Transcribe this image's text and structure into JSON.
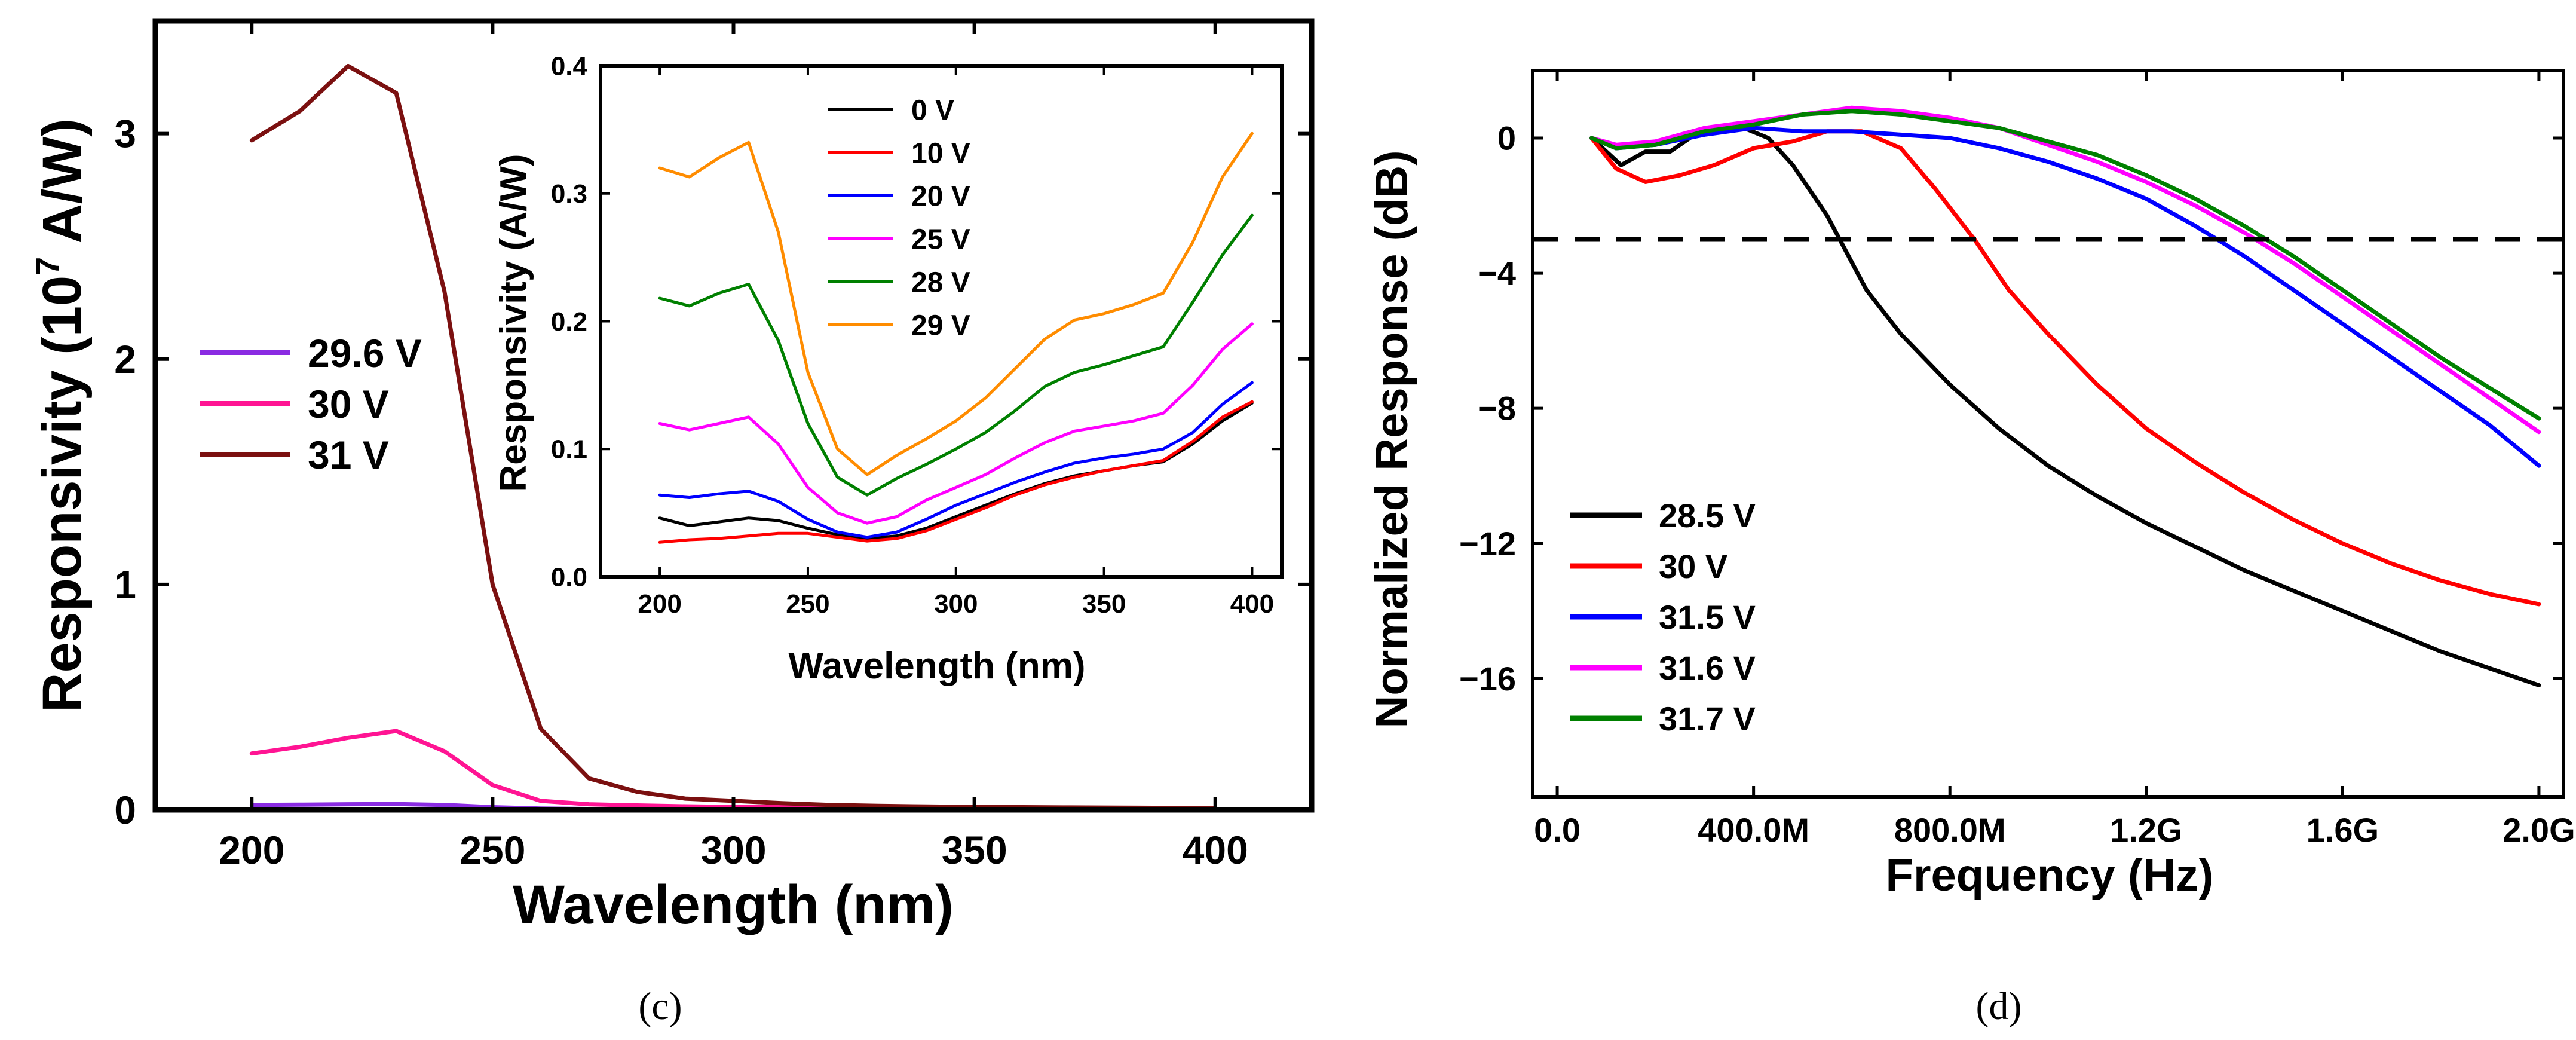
{
  "panels": {
    "c": "(c)",
    "d": "(d)"
  },
  "chart_data": [
    {
      "id": "c_main",
      "type": "line",
      "title": "",
      "xlabel": "Wavelength (nm)",
      "ylabel_main": "Responsivity (10",
      "ylabel_sup": "7",
      "ylabel_tail": " A/W)",
      "xlim": [
        180,
        420
      ],
      "ylim": [
        0,
        3.5
      ],
      "xticks": [
        200,
        250,
        300,
        350,
        400
      ],
      "xtick_labels": [
        "200",
        "250",
        "300",
        "350",
        "400"
      ],
      "yticks": [
        0,
        1,
        2,
        3
      ],
      "ytick_labels": [
        "0",
        "1",
        "2",
        "3"
      ],
      "x": [
        200,
        210,
        220,
        230,
        240,
        250,
        260,
        270,
        280,
        290,
        300,
        310,
        320,
        330,
        340,
        350,
        360,
        370,
        380,
        390,
        400
      ],
      "series": [
        {
          "name": "29.6 V",
          "color": "#8a2be2",
          "values": [
            0.022,
            0.023,
            0.025,
            0.026,
            0.022,
            0.012,
            0.006,
            0.004,
            0.003,
            0.003,
            0.002,
            0.002,
            0.002,
            0.002,
            0.002,
            0.002,
            0.002,
            0.002,
            0.002,
            0.002,
            0.002
          ]
        },
        {
          "name": "30 V",
          "color": "#ff1493",
          "values": [
            0.25,
            0.28,
            0.32,
            0.35,
            0.26,
            0.11,
            0.04,
            0.025,
            0.02,
            0.016,
            0.013,
            0.012,
            0.011,
            0.01,
            0.009,
            0.009,
            0.008,
            0.008,
            0.007,
            0.007,
            0.007
          ]
        },
        {
          "name": "31 V",
          "color": "#7b1010",
          "values": [
            2.97,
            3.1,
            3.3,
            3.18,
            2.3,
            1.0,
            0.36,
            0.14,
            0.08,
            0.05,
            0.04,
            0.03,
            0.022,
            0.018,
            0.015,
            0.013,
            0.012,
            0.011,
            0.01,
            0.009,
            0.008
          ]
        }
      ],
      "legend": "left"
    },
    {
      "id": "c_inset",
      "type": "line",
      "xlabel": "Wavelength (nm)",
      "ylabel": "Responsivity (A/W)",
      "xlim": [
        180,
        410
      ],
      "ylim": [
        0,
        0.4
      ],
      "xticks": [
        200,
        250,
        300,
        350,
        400
      ],
      "xtick_labels": [
        "200",
        "250",
        "300",
        "350",
        "400"
      ],
      "yticks": [
        0,
        0.1,
        0.2,
        0.3,
        0.4
      ],
      "ytick_labels": [
        "0.0",
        "0.1",
        "0.2",
        "0.3",
        "0.4"
      ],
      "x": [
        200,
        210,
        220,
        230,
        240,
        250,
        260,
        270,
        280,
        290,
        300,
        310,
        320,
        330,
        340,
        350,
        360,
        370,
        380,
        390,
        400
      ],
      "series": [
        {
          "name": "0 V",
          "color": "#000000",
          "values": [
            0.046,
            0.04,
            0.043,
            0.046,
            0.044,
            0.038,
            0.033,
            0.03,
            0.032,
            0.038,
            0.047,
            0.056,
            0.065,
            0.073,
            0.079,
            0.083,
            0.087,
            0.09,
            0.104,
            0.122,
            0.136
          ]
        },
        {
          "name": "10 V",
          "color": "#ff0000",
          "values": [
            0.027,
            0.029,
            0.03,
            0.032,
            0.034,
            0.034,
            0.031,
            0.028,
            0.03,
            0.036,
            0.045,
            0.054,
            0.064,
            0.072,
            0.078,
            0.083,
            0.087,
            0.091,
            0.106,
            0.125,
            0.137
          ]
        },
        {
          "name": "20 V",
          "color": "#0000ff",
          "values": [
            0.064,
            0.062,
            0.065,
            0.067,
            0.059,
            0.045,
            0.035,
            0.031,
            0.035,
            0.045,
            0.056,
            0.065,
            0.074,
            0.082,
            0.089,
            0.093,
            0.096,
            0.1,
            0.113,
            0.135,
            0.152
          ]
        },
        {
          "name": "25 V",
          "color": "#ff00ff",
          "values": [
            0.12,
            0.115,
            0.12,
            0.125,
            0.104,
            0.07,
            0.05,
            0.042,
            0.047,
            0.06,
            0.07,
            0.08,
            0.093,
            0.105,
            0.114,
            0.118,
            0.122,
            0.128,
            0.15,
            0.178,
            0.198
          ]
        },
        {
          "name": "28 V",
          "color": "#008000",
          "values": [
            0.218,
            0.212,
            0.222,
            0.229,
            0.185,
            0.12,
            0.078,
            0.064,
            0.077,
            0.088,
            0.1,
            0.113,
            0.13,
            0.149,
            0.16,
            0.166,
            0.173,
            0.18,
            0.215,
            0.252,
            0.283
          ]
        },
        {
          "name": "29 V",
          "color": "#ff8c00",
          "values": [
            0.32,
            0.313,
            0.328,
            0.34,
            0.27,
            0.16,
            0.1,
            0.08,
            0.095,
            0.108,
            0.122,
            0.14,
            0.163,
            0.186,
            0.201,
            0.206,
            0.213,
            0.222,
            0.262,
            0.313,
            0.347
          ]
        }
      ],
      "legend": "top-center"
    },
    {
      "id": "d",
      "type": "line",
      "xlabel": "Frequency (Hz)",
      "ylabel": "Normalized Response (dB)",
      "xlim": [
        -0.05,
        2.05
      ],
      "xlim_unit": "GHz",
      "ylim": [
        -19.5,
        2
      ],
      "xticks": [
        0,
        0.4,
        0.8,
        1.2,
        1.6,
        2.0
      ],
      "xtick_labels": [
        "0.0",
        "400.0M",
        "800.0M",
        "1.2G",
        "1.6G",
        "2.0G"
      ],
      "yticks": [
        0,
        -4,
        -8,
        -12,
        -16
      ],
      "ytick_labels": [
        "0",
        "−4",
        "−8",
        "−12",
        "−16"
      ],
      "reference_line_db": -3,
      "series": [
        {
          "name": "28.5 V",
          "color": "#000000",
          "x": [
            0.07,
            0.13,
            0.18,
            0.23,
            0.28,
            0.33,
            0.38,
            0.43,
            0.48,
            0.55,
            0.63,
            0.7,
            0.8,
            0.9,
            1.0,
            1.1,
            1.2,
            1.3,
            1.4,
            1.5,
            1.6,
            1.7,
            1.8,
            1.9,
            2.0
          ],
          "values": [
            0,
            -0.8,
            -0.4,
            -0.4,
            0.1,
            0.2,
            0.3,
            0.0,
            -0.8,
            -2.3,
            -4.5,
            -5.8,
            -7.3,
            -8.6,
            -9.7,
            -10.6,
            -11.4,
            -12.1,
            -12.8,
            -13.4,
            -14.0,
            -14.6,
            -15.2,
            -15.7,
            -16.2
          ]
        },
        {
          "name": "30 V",
          "color": "#ff0000",
          "x": [
            0.07,
            0.12,
            0.18,
            0.25,
            0.32,
            0.4,
            0.48,
            0.55,
            0.62,
            0.7,
            0.77,
            0.85,
            0.92,
            1.0,
            1.1,
            1.2,
            1.3,
            1.4,
            1.5,
            1.6,
            1.7,
            1.8,
            1.9,
            2.0
          ],
          "values": [
            0,
            -0.9,
            -1.3,
            -1.1,
            -0.8,
            -0.3,
            -0.1,
            0.2,
            0.2,
            -0.3,
            -1.5,
            -3.0,
            -4.5,
            -5.8,
            -7.3,
            -8.6,
            -9.6,
            -10.5,
            -11.3,
            -12.0,
            -12.6,
            -13.1,
            -13.5,
            -13.8
          ]
        },
        {
          "name": "31.5 V",
          "color": "#0000ff",
          "x": [
            0.07,
            0.12,
            0.2,
            0.3,
            0.4,
            0.5,
            0.6,
            0.7,
            0.8,
            0.9,
            1.0,
            1.1,
            1.2,
            1.3,
            1.4,
            1.5,
            1.6,
            1.7,
            1.8,
            1.9,
            2.0
          ],
          "values": [
            0,
            -0.3,
            -0.2,
            0.1,
            0.3,
            0.2,
            0.2,
            0.1,
            0.0,
            -0.3,
            -0.7,
            -1.2,
            -1.8,
            -2.6,
            -3.5,
            -4.5,
            -5.5,
            -6.5,
            -7.5,
            -8.5,
            -9.7
          ]
        },
        {
          "name": "31.6 V",
          "color": "#ff00ff",
          "x": [
            0.07,
            0.12,
            0.2,
            0.3,
            0.4,
            0.5,
            0.6,
            0.7,
            0.8,
            0.9,
            1.0,
            1.1,
            1.2,
            1.3,
            1.4,
            1.5,
            1.6,
            1.7,
            1.8,
            1.9,
            2.0
          ],
          "values": [
            0,
            -0.2,
            -0.1,
            0.3,
            0.5,
            0.7,
            0.9,
            0.8,
            0.6,
            0.3,
            -0.2,
            -0.7,
            -1.3,
            -2.0,
            -2.8,
            -3.7,
            -4.7,
            -5.7,
            -6.7,
            -7.7,
            -8.7
          ]
        },
        {
          "name": "31.7 V",
          "color": "#008000",
          "x": [
            0.07,
            0.12,
            0.2,
            0.3,
            0.4,
            0.5,
            0.6,
            0.7,
            0.8,
            0.9,
            1.0,
            1.1,
            1.2,
            1.3,
            1.4,
            1.5,
            1.6,
            1.7,
            1.8,
            1.9,
            2.0
          ],
          "values": [
            0,
            -0.3,
            -0.2,
            0.2,
            0.4,
            0.7,
            0.8,
            0.7,
            0.5,
            0.3,
            -0.1,
            -0.5,
            -1.1,
            -1.8,
            -2.6,
            -3.5,
            -4.5,
            -5.5,
            -6.5,
            -7.4,
            -8.3
          ]
        }
      ],
      "legend": "bottom-left"
    }
  ]
}
